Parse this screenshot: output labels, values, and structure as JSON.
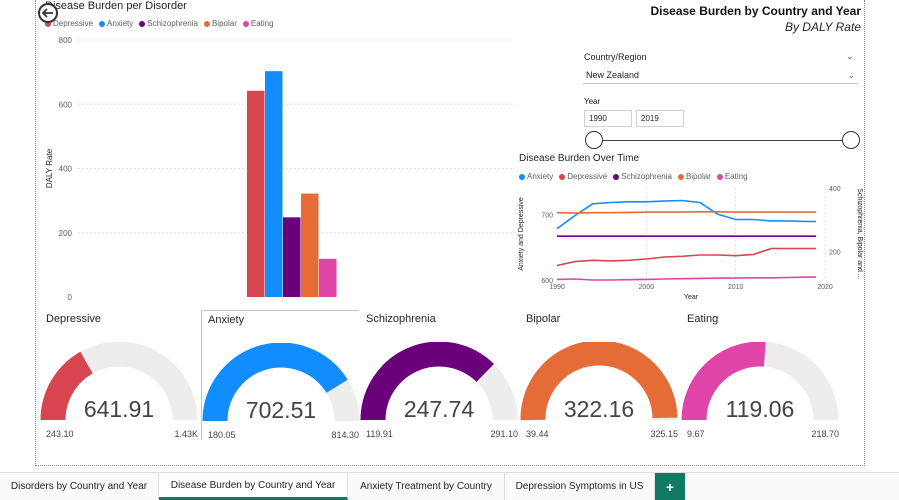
{
  "page": {
    "title": "Disease Burden by Country and Year",
    "subtitle": "By DALY Rate"
  },
  "bar_chart_card": {
    "title": "Disease Burden per Disorder",
    "ylabel": "DALY Rate"
  },
  "filters": {
    "country_label": "Country/Region",
    "country_value": "New Zealand",
    "year_label": "Year",
    "year_from": "1990",
    "year_to": "2019"
  },
  "line_chart_card": {
    "title": "Disease Burden Over Time",
    "xlabel": "Year",
    "ylabel_left": "Anxiety and Depressive",
    "ylabel_right": "Schizophrenia, Bipolar and ..."
  },
  "colors": {
    "depressive": "#D64550",
    "anxiety": "#118DFF",
    "schizophrenia": "#6B007B",
    "bipolar": "#E66C37",
    "eating": "#E044A7",
    "gauge_bg": "#EFEDEC",
    "accent": "#117865"
  },
  "legend": [
    {
      "name": "Depressive",
      "color": "#D64550"
    },
    {
      "name": "Anxiety",
      "color": "#118DFF"
    },
    {
      "name": "Schizophrenia",
      "color": "#6B007B"
    },
    {
      "name": "Bipolar",
      "color": "#E66C37"
    },
    {
      "name": "Eating",
      "color": "#E044A7"
    }
  ],
  "chart_data": [
    {
      "type": "bar",
      "title": "Disease Burden per Disorder",
      "ylabel": "DALY Rate",
      "ylim": [
        0,
        800
      ],
      "yticks": [
        0,
        200,
        400,
        600,
        800
      ],
      "grid": true,
      "legend_position": "top-left",
      "series": [
        {
          "name": "Depressive",
          "values": [
            642
          ]
        },
        {
          "name": "Anxiety",
          "values": [
            703
          ]
        },
        {
          "name": "Schizophrenia",
          "values": [
            248
          ]
        },
        {
          "name": "Bipolar",
          "values": [
            322
          ]
        },
        {
          "name": "Eating",
          "values": [
            119
          ]
        }
      ]
    },
    {
      "type": "line",
      "title": "Disease Burden Over Time",
      "xlabel": "Year",
      "ylabel_left": "Anxiety and Depressive",
      "ylabel_right": "Schizophrenia, Bipolar and ...",
      "xlim": [
        1990,
        2020
      ],
      "xticks": [
        1990,
        2000,
        2010,
        2020
      ],
      "ylim_left": [
        600,
        740
      ],
      "yticks_left": [
        600,
        700
      ],
      "ylim_right": [
        110,
        400
      ],
      "yticks_right": [
        200,
        400
      ],
      "legend_position": "top-left",
      "x": [
        1990,
        1992,
        1994,
        1996,
        1998,
        2000,
        2002,
        2004,
        2006,
        2008,
        2010,
        2012,
        2014,
        2016,
        2018,
        2019
      ],
      "series": [
        {
          "name": "Anxiety",
          "axis": "left",
          "values": [
            678,
            698,
            716,
            718,
            719,
            719,
            720,
            721,
            718,
            700,
            692,
            692,
            690,
            690,
            689,
            689
          ]
        },
        {
          "name": "Depressive",
          "axis": "left",
          "values": [
            622,
            628,
            630,
            629,
            630,
            632,
            635,
            636,
            638,
            638,
            637,
            639,
            648,
            648,
            648,
            648
          ]
        },
        {
          "name": "Schizophrenia",
          "axis": "right",
          "values": [
            248,
            248,
            248,
            248,
            248,
            248,
            248,
            248,
            248,
            248,
            248,
            248,
            248,
            248,
            248,
            248
          ]
        },
        {
          "name": "Bipolar",
          "axis": "right",
          "values": [
            322,
            321,
            322,
            322,
            323,
            324,
            324,
            324,
            325,
            325,
            324,
            324,
            324,
            324,
            324,
            324
          ]
        },
        {
          "name": "Eating",
          "axis": "right",
          "values": [
            112,
            113,
            110,
            110,
            111,
            112,
            113,
            114,
            115,
            116,
            116,
            117,
            117,
            118,
            119,
            119
          ]
        }
      ]
    }
  ],
  "gauges": [
    {
      "title": "Depressive",
      "value": 641.91,
      "value_text": "641.91",
      "min": 243.1,
      "min_text": "243.10",
      "max": 1430,
      "max_text": "1.43K",
      "color": "#D64550"
    },
    {
      "title": "Anxiety",
      "value": 702.51,
      "value_text": "702.51",
      "min": 180.05,
      "min_text": "180.05",
      "max": 814.3,
      "max_text": "814.30",
      "color": "#118DFF"
    },
    {
      "title": "Schizophrenia",
      "value": 247.74,
      "value_text": "247.74",
      "min": 119.91,
      "min_text": "119.91",
      "max": 291.1,
      "max_text": "291.10",
      "color": "#6B007B"
    },
    {
      "title": "Bipolar",
      "value": 322.16,
      "value_text": "322.16",
      "min": 39.44,
      "min_text": "39.44",
      "max": 325.15,
      "max_text": "325.15",
      "color": "#E66C37"
    },
    {
      "title": "Eating",
      "value": 119.06,
      "value_text": "119.06",
      "min": 9.67,
      "min_text": "9.67",
      "max": 218.7,
      "max_text": "218.70",
      "color": "#E044A7"
    }
  ],
  "tabs": [
    {
      "label": "Disorders by Country and Year",
      "active": false
    },
    {
      "label": "Disease Burden by Country and Year",
      "active": true
    },
    {
      "label": "Anxiety Treatment by Country",
      "active": false
    },
    {
      "label": "Depression Symptoms in US",
      "active": false
    }
  ],
  "add_tab_label": "+"
}
